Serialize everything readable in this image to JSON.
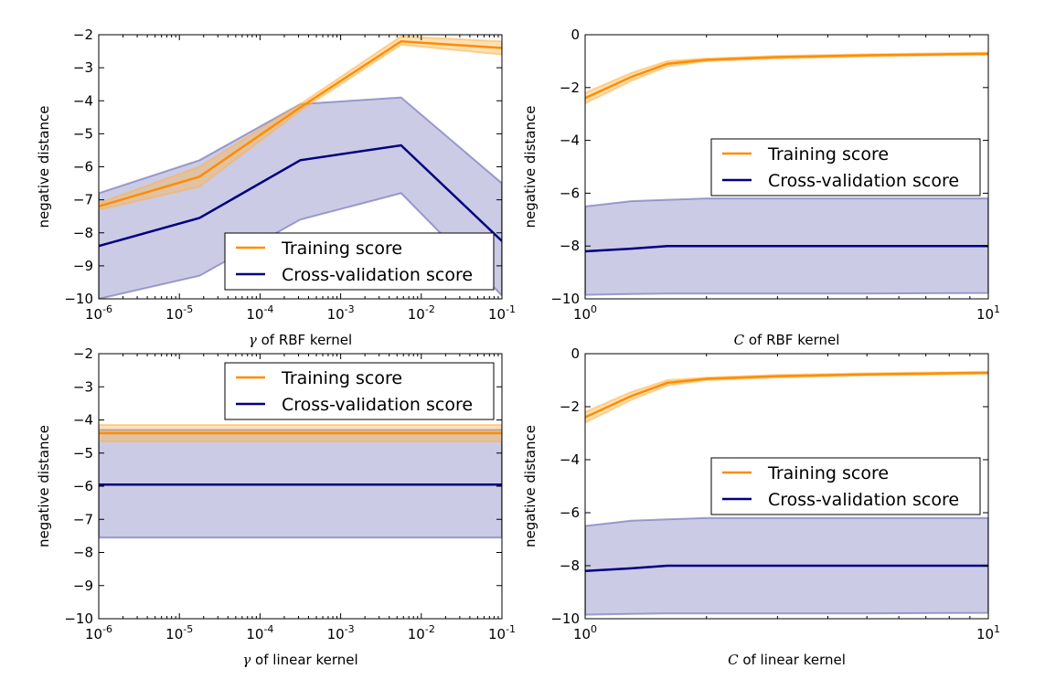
{
  "colors": {
    "training": "#FF8C00",
    "training_band": "#FFB347",
    "cv": "#000080",
    "cv_band": "#5C5CAE"
  },
  "chart_data": [
    {
      "type": "line",
      "xscale": "log",
      "xlim": [
        1e-06,
        0.1
      ],
      "ylim": [
        -10,
        -2
      ],
      "xlabel_prefix": "γ",
      "xlabel": "of RBF kernel",
      "ylabel": "negative distance",
      "xticks": [
        {
          "base": "10",
          "exp": "-6"
        },
        {
          "base": "10",
          "exp": "-5"
        },
        {
          "base": "10",
          "exp": "-4"
        },
        {
          "base": "10",
          "exp": "-3"
        },
        {
          "base": "10",
          "exp": "-2"
        },
        {
          "base": "10",
          "exp": "-1"
        }
      ],
      "yticks": [
        "−2",
        "−3",
        "−4",
        "−5",
        "−6",
        "−7",
        "−8",
        "−9",
        "−10"
      ],
      "legend": "lower-right",
      "series": [
        {
          "name": "Training score",
          "x": [
            1e-06,
            1.78e-05,
            0.000316,
            0.00562,
            0.1
          ],
          "mean": [
            -7.2,
            -6.3,
            -4.2,
            -2.2,
            -2.4
          ],
          "lower": [
            -7.3,
            -6.6,
            -4.3,
            -2.3,
            -2.6
          ],
          "upper": [
            -7.1,
            -6.0,
            -4.1,
            -2.05,
            -2.2
          ]
        },
        {
          "name": "Cross-validation score",
          "x": [
            1e-06,
            1.78e-05,
            0.000316,
            0.00562,
            0.1
          ],
          "mean": [
            -8.4,
            -7.55,
            -5.8,
            -5.35,
            -8.25
          ],
          "lower": [
            -10.0,
            -9.3,
            -7.6,
            -6.8,
            -9.9
          ],
          "upper": [
            -6.8,
            -5.8,
            -4.1,
            -3.9,
            -6.5
          ]
        }
      ]
    },
    {
      "type": "line",
      "xscale": "log",
      "xlim": [
        1,
        10
      ],
      "ylim": [
        -10,
        0
      ],
      "xlabel_prefix": "C",
      "xlabel": "of RBF kernel",
      "ylabel": "negative distance",
      "xticks": [
        {
          "base": "10",
          "exp": "0"
        },
        {
          "base": "10",
          "exp": "1"
        }
      ],
      "yticks": [
        "0",
        "−2",
        "−4",
        "−6",
        "−8",
        "−10"
      ],
      "legend": "center-right",
      "series": [
        {
          "name": "Training score",
          "x": [
            1,
            1.3,
            1.6,
            2,
            3,
            5,
            10
          ],
          "mean": [
            -2.4,
            -1.6,
            -1.1,
            -0.95,
            -0.85,
            -0.78,
            -0.72
          ],
          "lower": [
            -2.6,
            -1.75,
            -1.2,
            -1.0,
            -0.9,
            -0.82,
            -0.76
          ],
          "upper": [
            -2.2,
            -1.45,
            -1.0,
            -0.9,
            -0.8,
            -0.74,
            -0.68
          ]
        },
        {
          "name": "Cross-validation score",
          "x": [
            1,
            1.3,
            1.6,
            2,
            3,
            5,
            10
          ],
          "mean": [
            -8.2,
            -8.1,
            -8.0,
            -8.0,
            -8.0,
            -8.0,
            -8.0
          ],
          "lower": [
            -9.85,
            -9.82,
            -9.8,
            -9.8,
            -9.8,
            -9.8,
            -9.78
          ],
          "upper": [
            -6.5,
            -6.3,
            -6.25,
            -6.2,
            -6.2,
            -6.2,
            -6.2
          ]
        }
      ]
    },
    {
      "type": "line",
      "xscale": "log",
      "xlim": [
        1e-06,
        0.1
      ],
      "ylim": [
        -10,
        -2
      ],
      "xlabel_prefix": "γ",
      "xlabel": "of linear kernel",
      "ylabel": "negative distance",
      "xticks": [
        {
          "base": "10",
          "exp": "-6"
        },
        {
          "base": "10",
          "exp": "-5"
        },
        {
          "base": "10",
          "exp": "-4"
        },
        {
          "base": "10",
          "exp": "-3"
        },
        {
          "base": "10",
          "exp": "-2"
        },
        {
          "base": "10",
          "exp": "-1"
        }
      ],
      "yticks": [
        "−2",
        "−3",
        "−4",
        "−5",
        "−6",
        "−7",
        "−8",
        "−9",
        "−10"
      ],
      "legend": "upper-right",
      "series": [
        {
          "name": "Training score",
          "x": [
            1e-06,
            0.1
          ],
          "mean": [
            -4.4,
            -4.4
          ],
          "lower": [
            -4.65,
            -4.65
          ],
          "upper": [
            -4.15,
            -4.15
          ]
        },
        {
          "name": "Cross-validation score",
          "x": [
            1e-06,
            0.1
          ],
          "mean": [
            -5.95,
            -5.95
          ],
          "lower": [
            -7.55,
            -7.55
          ],
          "upper": [
            -4.3,
            -4.3
          ]
        }
      ]
    },
    {
      "type": "line",
      "xscale": "log",
      "xlim": [
        1,
        10
      ],
      "ylim": [
        -10,
        0
      ],
      "xlabel_prefix": "C",
      "xlabel": "of linear kernel",
      "ylabel": "negative distance",
      "xticks": [
        {
          "base": "10",
          "exp": "0"
        },
        {
          "base": "10",
          "exp": "1"
        }
      ],
      "yticks": [
        "0",
        "−2",
        "−4",
        "−6",
        "−8",
        "−10"
      ],
      "legend": "center-right",
      "series": [
        {
          "name": "Training score",
          "x": [
            1,
            1.3,
            1.6,
            2,
            3,
            5,
            10
          ],
          "mean": [
            -2.4,
            -1.6,
            -1.1,
            -0.95,
            -0.85,
            -0.78,
            -0.72
          ],
          "lower": [
            -2.6,
            -1.75,
            -1.2,
            -1.0,
            -0.9,
            -0.82,
            -0.76
          ],
          "upper": [
            -2.2,
            -1.45,
            -1.0,
            -0.9,
            -0.8,
            -0.74,
            -0.68
          ]
        },
        {
          "name": "Cross-validation score",
          "x": [
            1,
            1.3,
            1.6,
            2,
            3,
            5,
            10
          ],
          "mean": [
            -8.2,
            -8.1,
            -8.0,
            -8.0,
            -8.0,
            -8.0,
            -8.0
          ],
          "lower": [
            -9.85,
            -9.82,
            -9.8,
            -9.8,
            -9.8,
            -9.8,
            -9.78
          ],
          "upper": [
            -6.5,
            -6.3,
            -6.25,
            -6.2,
            -6.2,
            -6.2,
            -6.2
          ]
        }
      ]
    }
  ]
}
